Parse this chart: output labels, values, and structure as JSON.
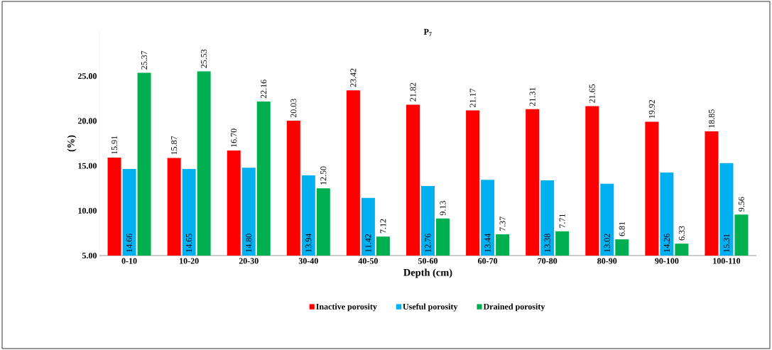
{
  "chart_data": {
    "type": "bar",
    "title": "P$_{7}$",
    "xlabel": "Depth (cm)",
    "ylabel": "(%)",
    "categories": [
      "0-10",
      "10-20",
      "20-30",
      "30-40",
      "40-50",
      "50-60",
      "60-70",
      "70-80",
      "80-90",
      "90-100",
      "100-110"
    ],
    "series": [
      {
        "name": "Inactive porosity",
        "color": "#ff0000",
        "values": [
          15.91,
          15.87,
          16.7,
          20.03,
          23.42,
          21.82,
          21.17,
          21.31,
          21.65,
          19.92,
          18.85
        ],
        "value_labels": [
          "15.91",
          "15.87",
          "16.70",
          "20.03",
          "23.42",
          "21.82",
          "21.17",
          "21.31",
          "21.65",
          "19.92",
          "18.85"
        ]
      },
      {
        "name": "Useful porosity",
        "color": "#00b0f0",
        "values": [
          14.66,
          14.65,
          14.8,
          13.94,
          11.42,
          12.76,
          13.44,
          13.38,
          13.02,
          14.26,
          15.31
        ],
        "value_labels": [
          "14.66",
          "14.65",
          "14.80",
          "13.94",
          "11.42",
          "12.76",
          "13.44",
          "13.38",
          "13.02",
          "14.26",
          "15.31"
        ]
      },
      {
        "name": "Drained porosity",
        "color": "#00b050",
        "values": [
          25.37,
          25.53,
          22.16,
          12.5,
          7.12,
          9.13,
          7.37,
          7.71,
          6.81,
          6.33,
          9.56
        ],
        "value_labels": [
          "25.37",
          "25.53",
          "22.16",
          "12.50",
          "7.12",
          "9.13",
          "7.37",
          "7.71",
          "6.81",
          "6.33",
          "9.56"
        ]
      }
    ],
    "ylim": [
      5,
      30
    ],
    "yticks": [
      {
        "value": 5,
        "label": "5.00"
      },
      {
        "value": 10,
        "label": "10.00"
      },
      {
        "value": 15,
        "label": "15.00"
      },
      {
        "value": 20,
        "label": "20.00"
      },
      {
        "value": 25,
        "label": "25.00"
      }
    ],
    "grid": false,
    "legend": "bottom"
  }
}
